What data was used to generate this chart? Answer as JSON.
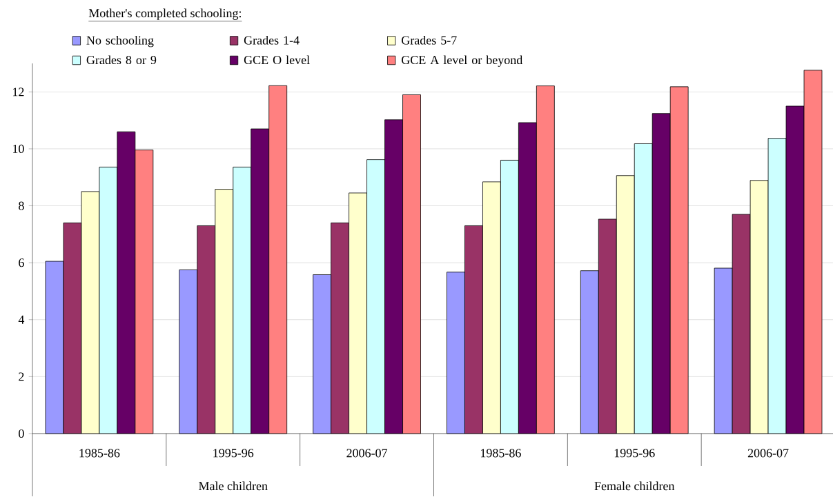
{
  "chart_data": {
    "type": "bar",
    "legend_title": "Mother's completed schooling:",
    "categories": [
      "1985-86",
      "1995-96",
      "2006-07",
      "1985-86",
      "1995-96",
      "2006-07"
    ],
    "series": [
      {
        "name": "No schooling",
        "color": "#9999ff",
        "values": [
          6.05,
          5.75,
          5.58,
          5.67,
          5.72,
          5.81
        ]
      },
      {
        "name": "Grades 1-4",
        "color": "#993366",
        "values": [
          7.4,
          7.3,
          7.4,
          7.3,
          7.53,
          7.7
        ]
      },
      {
        "name": "Grades 5-7",
        "color": "#ffffcc",
        "values": [
          8.5,
          8.58,
          8.45,
          8.84,
          9.06,
          8.89
        ]
      },
      {
        "name": "Grades 8 or 9",
        "color": "#ccffff",
        "values": [
          9.36,
          9.36,
          9.62,
          9.6,
          10.18,
          10.37
        ]
      },
      {
        "name": "GCE O level",
        "color": "#660066",
        "values": [
          10.6,
          10.7,
          11.02,
          10.92,
          11.24,
          11.5
        ]
      },
      {
        "name": "GCE A level or beyond",
        "color": "#ff8080",
        "values": [
          9.96,
          12.22,
          11.9,
          12.21,
          12.18,
          12.76
        ]
      }
    ],
    "ylim": [
      0,
      13
    ],
    "yticks": [
      0,
      2,
      4,
      6,
      8,
      10,
      12
    ],
    "grid": "y",
    "legend": "top",
    "annotations": [
      "Male children",
      "Female children"
    ]
  }
}
